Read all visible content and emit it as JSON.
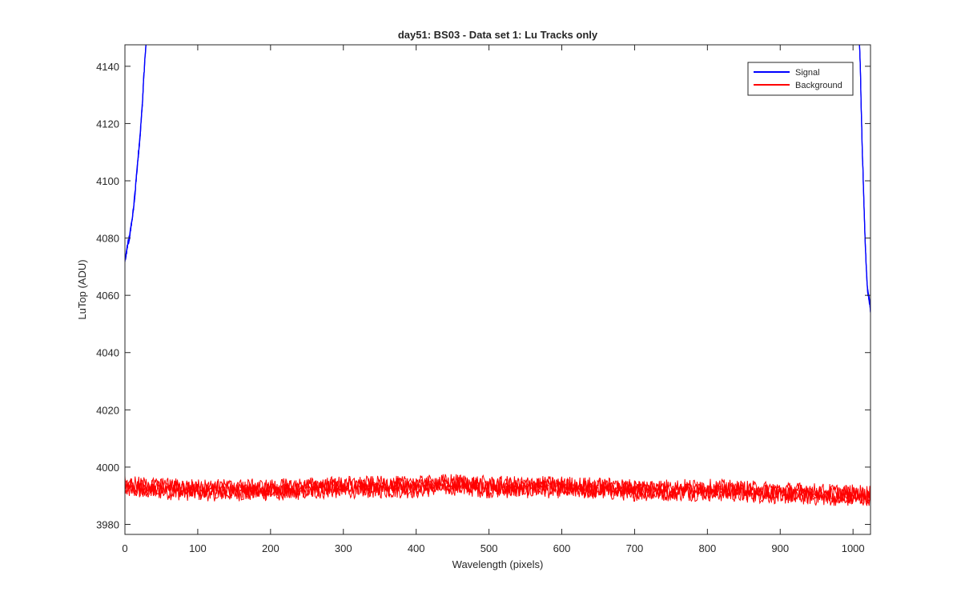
{
  "chart_data": {
    "type": "line",
    "title": "day51: BS03 - Data set 1: Lu Tracks only",
    "xlabel": "Wavelength (pixels)",
    "ylabel": "LuTop (ADU)",
    "xlim": [
      0,
      1024
    ],
    "ylim": [
      3976.5,
      4147.5
    ],
    "xticks": [
      0,
      100,
      200,
      300,
      400,
      500,
      600,
      700,
      800,
      900,
      1000
    ],
    "yticks": [
      3980,
      4000,
      4020,
      4040,
      4060,
      4080,
      4100,
      4120,
      4140
    ],
    "grid": false,
    "legend_position": "top-right",
    "series": [
      {
        "name": "Signal",
        "color": "#0000ff",
        "segments": [
          {
            "x": [
              0,
              2,
              4,
              6,
              8,
              10,
              12,
              14,
              16,
              18,
              20,
              22,
              24,
              25,
              26,
              27,
              28,
              29,
              30
            ],
            "y": [
              4072,
              4075,
              4078,
              4080,
              4083,
              4087,
              4091,
              4096,
              4102,
              4108,
              4113,
              4120,
              4127,
              4132,
              4137,
              4141,
              4145,
              4148,
              4152
            ]
          },
          {
            "x": [
              1008,
              1009,
              1010,
              1011,
              1012,
              1013,
              1014,
              1015,
              1016,
              1017,
              1018,
              1019,
              1020,
              1021,
              1022,
              1023,
              1024
            ],
            "y": [
              4152,
              4147,
              4140,
              4128,
              4118,
              4108,
              4100,
              4092,
              4084,
              4077,
              4071,
              4066,
              4062,
              4060,
              4059,
              4057,
              4055
            ]
          }
        ]
      },
      {
        "name": "Background",
        "color": "#ff0000",
        "mean_x": [
          0,
          100,
          200,
          300,
          400,
          450,
          500,
          600,
          700,
          800,
          900,
          1000,
          1024
        ],
        "mean_y": [
          3993,
          3992,
          3992,
          3993,
          3993,
          3994,
          3993,
          3993,
          3992,
          3992,
          3991,
          3990,
          3990
        ],
        "noise_range": [
          3986.5,
          3997.5
        ]
      }
    ]
  }
}
